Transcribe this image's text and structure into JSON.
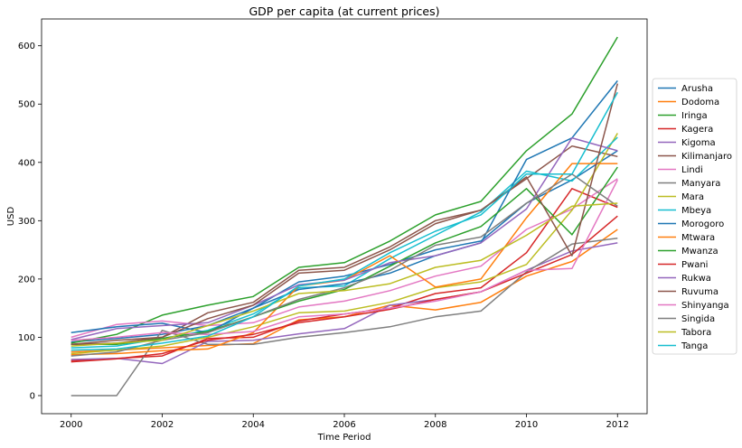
{
  "chart_data": {
    "type": "line",
    "title": "GDP per capita (at current prices)",
    "xlabel": "Time Period",
    "ylabel": "USD",
    "xlim": [
      1999.35,
      2012.65
    ],
    "ylim": [
      -31,
      646
    ],
    "xticks": [
      2000,
      2002,
      2004,
      2006,
      2008,
      2010,
      2012
    ],
    "xtick_labels": [
      "2000",
      "2002",
      "2004",
      "2006",
      "2008",
      "2010",
      "2012"
    ],
    "yticks": [
      0,
      100,
      200,
      300,
      400,
      500,
      600
    ],
    "ytick_labels": [
      "0",
      "100",
      "200",
      "300",
      "400",
      "500",
      "600"
    ],
    "grid": false,
    "legend_position": "right",
    "x": [
      2000,
      2001,
      2002,
      2003,
      2004,
      2005,
      2006,
      2007,
      2008,
      2009,
      2010,
      2011,
      2012
    ],
    "series": [
      {
        "name": "Arusha",
        "color": "#1f77b4",
        "values": [
          92,
          98,
          105,
          120,
          150,
          195,
          205,
          225,
          250,
          265,
          330,
          370,
          420
        ]
      },
      {
        "name": "Dodoma",
        "color": "#ff7f0e",
        "values": [
          75,
          78,
          82,
          86,
          89,
          130,
          135,
          155,
          147,
          160,
          205,
          230,
          285
        ]
      },
      {
        "name": "Iringa",
        "color": "#2ca02c",
        "values": [
          90,
          105,
          138,
          155,
          170,
          220,
          228,
          265,
          310,
          333,
          420,
          483,
          615
        ]
      },
      {
        "name": "Kagera",
        "color": "#d62728",
        "values": [
          60,
          64,
          68,
          98,
          100,
          128,
          140,
          150,
          175,
          185,
          245,
          355,
          323
        ]
      },
      {
        "name": "Kigoma",
        "color": "#9467bd",
        "values": [
          62,
          64,
          55,
          93,
          95,
          106,
          115,
          155,
          165,
          178,
          215,
          248,
          262
        ]
      },
      {
        "name": "Kilimanjaro",
        "color": "#8c564b",
        "values": [
          88,
          95,
          100,
          142,
          160,
          215,
          220,
          255,
          300,
          318,
          372,
          428,
          410
        ]
      },
      {
        "name": "Lindi",
        "color": "#e377c2",
        "values": [
          100,
          122,
          128,
          120,
          125,
          152,
          162,
          180,
          205,
          222,
          285,
          320,
          372
        ]
      },
      {
        "name": "Manyara",
        "color": "#7f7f7f",
        "values": [
          0,
          0,
          112,
          88,
          88,
          100,
          108,
          118,
          135,
          145,
          212,
          260,
          270
        ]
      },
      {
        "name": "Mara",
        "color": "#bcbd22",
        "values": [
          72,
          78,
          85,
          100,
          118,
          142,
          145,
          160,
          185,
          195,
          225,
          318,
          450
        ]
      },
      {
        "name": "Mbeya",
        "color": "#17becf",
        "values": [
          82,
          85,
          98,
          112,
          140,
          185,
          188,
          235,
          275,
          315,
          385,
          368,
          443
        ]
      },
      {
        "name": "Morogoro",
        "color": "#1f77b4",
        "values": [
          108,
          118,
          124,
          108,
          150,
          182,
          192,
          210,
          240,
          262,
          405,
          442,
          540
        ]
      },
      {
        "name": "Mtwara",
        "color": "#ff7f0e",
        "values": [
          70,
          72,
          77,
          80,
          108,
          188,
          198,
          240,
          186,
          200,
          305,
          398,
          398
        ]
      },
      {
        "name": "Mwanza",
        "color": "#2ca02c",
        "values": [
          88,
          88,
          98,
          110,
          135,
          162,
          182,
          222,
          262,
          290,
          355,
          276,
          392
        ]
      },
      {
        "name": "Pwani",
        "color": "#d62728",
        "values": [
          58,
          63,
          72,
          95,
          105,
          125,
          135,
          148,
          165,
          178,
          210,
          242,
          308
        ]
      },
      {
        "name": "Rukwa",
        "color": "#9467bd",
        "values": [
          96,
          115,
          120,
          125,
          155,
          190,
          198,
          228,
          240,
          262,
          320,
          442,
          420
        ]
      },
      {
        "name": "Ruvuma",
        "color": "#8c564b",
        "values": [
          88,
          90,
          100,
          132,
          155,
          210,
          215,
          250,
          295,
          318,
          375,
          240,
          535
        ]
      },
      {
        "name": "Shinyanga",
        "color": "#e377c2",
        "values": [
          95,
          100,
          108,
          105,
          110,
          135,
          140,
          150,
          162,
          178,
          215,
          218,
          370
        ]
      },
      {
        "name": "Singida",
        "color": "#7f7f7f",
        "values": [
          68,
          75,
          95,
          108,
          135,
          165,
          185,
          215,
          258,
          272,
          330,
          380,
          325
        ]
      },
      {
        "name": "Tabora",
        "color": "#bcbd22",
        "values": [
          85,
          90,
          95,
          120,
          145,
          175,
          180,
          192,
          220,
          232,
          275,
          325,
          330
        ]
      },
      {
        "name": "Tanga",
        "color": "#17becf",
        "values": [
          78,
          80,
          90,
          102,
          135,
          188,
          200,
          245,
          282,
          310,
          380,
          380,
          520
        ]
      }
    ]
  }
}
